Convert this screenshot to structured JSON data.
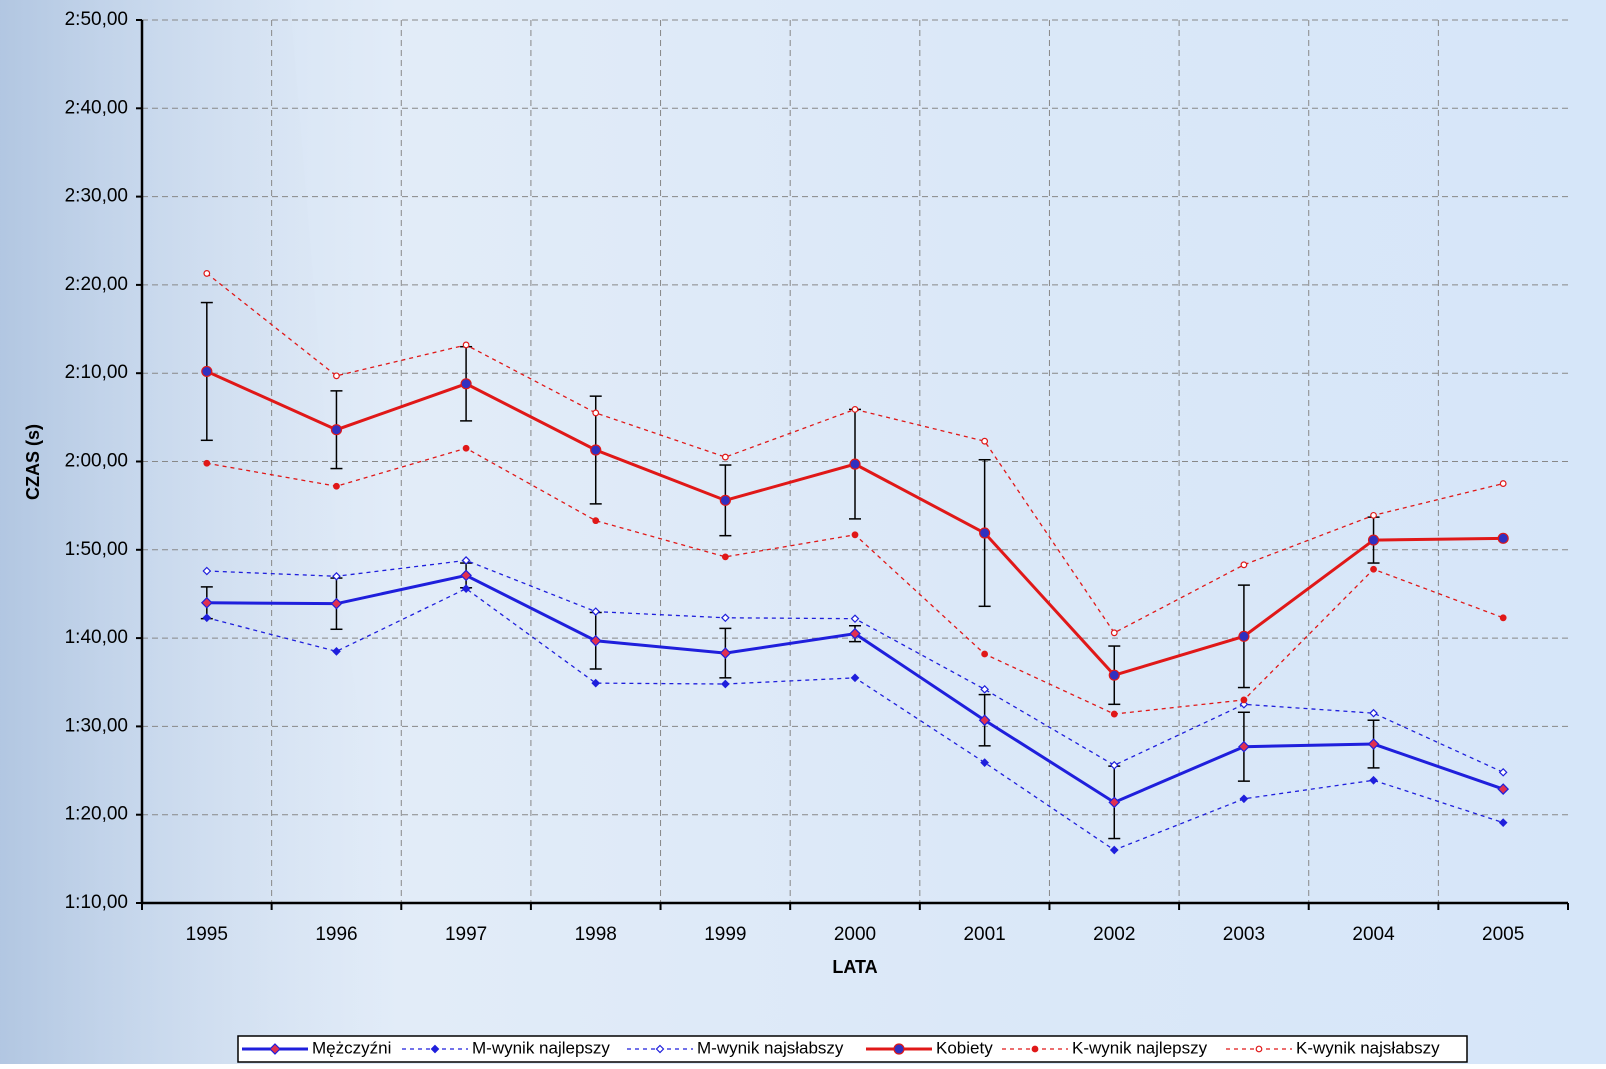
{
  "chart_data": {
    "type": "line",
    "x_label": "LATA",
    "y_label": "CZAS (s)",
    "categories": [
      "1995",
      "1996",
      "1997",
      "1998",
      "1999",
      "2000",
      "2001",
      "2002",
      "2003",
      "2004",
      "2005"
    ],
    "ylim": [
      70,
      170
    ],
    "yticks": [
      {
        "value": 70,
        "label": "1:10,00"
      },
      {
        "value": 80,
        "label": "1:20,00"
      },
      {
        "value": 90,
        "label": "1:30,00"
      },
      {
        "value": 100,
        "label": "1:40,00"
      },
      {
        "value": 110,
        "label": "1:50,00"
      },
      {
        "value": 120,
        "label": "2:00,00"
      },
      {
        "value": 130,
        "label": "2:10,00"
      },
      {
        "value": 140,
        "label": "2:20,00"
      },
      {
        "value": 150,
        "label": "2:30,00"
      },
      {
        "value": 160,
        "label": "2:40,00"
      },
      {
        "value": 170,
        "label": "2:50,00"
      }
    ],
    "grid": true,
    "legend": "bottom",
    "series": [
      {
        "name": "Mężczyźni",
        "color": "#1f1fdc",
        "line_style": "solid",
        "marker": "diamond",
        "marker_color": "#e03050",
        "values": [
          104.0,
          103.9,
          107.1,
          99.7,
          98.3,
          100.5,
          90.7,
          81.4,
          87.7,
          88.0,
          82.9
        ],
        "errors": [
          1.8,
          2.9,
          1.4,
          3.2,
          2.8,
          0.9,
          2.9,
          4.1,
          3.9,
          2.7,
          null
        ]
      },
      {
        "name": "M-wynik najlepszy",
        "color": "#1f1fdc",
        "line_style": "dotted",
        "marker": "filled-diamond",
        "marker_color": "#1f1fdc",
        "values": [
          102.3,
          98.5,
          105.6,
          94.9,
          94.8,
          95.5,
          85.9,
          76.0,
          81.8,
          83.9,
          79.1
        ]
      },
      {
        "name": "M-wynik najsłabszy",
        "color": "#1f1fdc",
        "line_style": "dotted",
        "marker": "open-diamond",
        "marker_color": "#1f1fdc",
        "values": [
          107.6,
          107.0,
          108.8,
          103.0,
          102.3,
          102.2,
          94.2,
          85.6,
          92.5,
          91.5,
          84.8
        ]
      },
      {
        "name": "Kobiety",
        "color": "#e01818",
        "line_style": "solid",
        "marker": "circle",
        "marker_color": "#3030c0",
        "values": [
          130.2,
          123.6,
          128.8,
          121.3,
          115.6,
          119.7,
          111.9,
          95.8,
          100.2,
          111.1,
          111.3
        ],
        "errors": [
          7.8,
          4.4,
          4.2,
          6.1,
          4.0,
          6.2,
          8.3,
          3.3,
          5.8,
          2.6,
          null
        ]
      },
      {
        "name": "K-wynik najlepszy",
        "color": "#e01818",
        "line_style": "dotted",
        "marker": "filled-circle",
        "marker_color": "#e01818",
        "values": [
          119.8,
          117.2,
          121.5,
          113.3,
          109.2,
          111.7,
          98.2,
          91.4,
          93.0,
          107.8,
          102.3
        ]
      },
      {
        "name": "K-wynik najsłabszy",
        "color": "#e01818",
        "line_style": "dotted",
        "marker": "open-circle",
        "marker_color": "#e01818",
        "values": [
          141.3,
          129.7,
          133.2,
          125.5,
          120.5,
          125.9,
          122.3,
          100.6,
          108.3,
          113.9,
          117.5
        ]
      }
    ]
  }
}
